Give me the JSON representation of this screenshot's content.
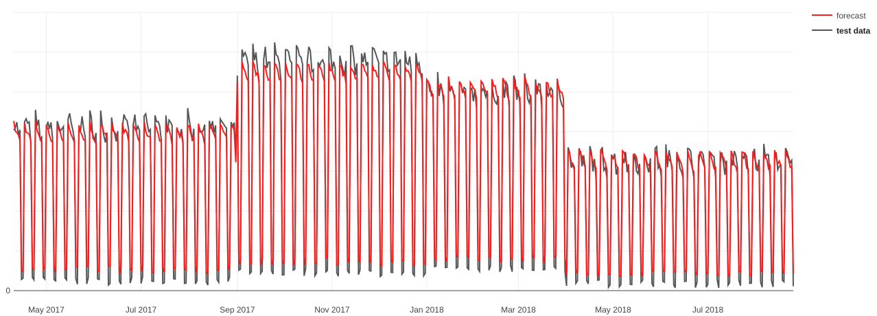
{
  "chart_data": {
    "type": "line",
    "title": "",
    "xlabel": "",
    "ylabel": "",
    "x_range": [
      "2017-04-10",
      "2018-08-25"
    ],
    "y_tick_labels": [
      "0"
    ],
    "x_tick_labels": [
      "May 2017",
      "Jul 2017",
      "Sep 2017",
      "Nov 2017",
      "Jan 2018",
      "Mar 2018",
      "May 2018",
      "Jul 2018"
    ],
    "x_tick_dates": [
      "2017-05-01",
      "2017-07-01",
      "2017-09-01",
      "2017-11-01",
      "2018-01-01",
      "2018-03-01",
      "2018-05-01",
      "2018-07-01"
    ],
    "grid": true,
    "legend_placement": "top-right",
    "series": [
      {
        "name": "forecast",
        "color": "#ff1a1a"
      },
      {
        "name": "test data",
        "color": "#555555"
      }
    ],
    "weekly_peak_segments": [
      {
        "from": "2017-04-10",
        "to": "2017-08-31",
        "test_peak": 0.62,
        "forecast_peak": 0.6,
        "test_trough": 0.02
      },
      {
        "from": "2017-09-01",
        "to": "2018-01-01",
        "test_peak": 0.86,
        "forecast_peak": 0.82,
        "test_trough": 0.05
      },
      {
        "from": "2018-01-01",
        "to": "2018-04-01",
        "test_peak": 0.75,
        "forecast_peak": 0.76,
        "test_trough": 0.06
      },
      {
        "from": "2018-04-01",
        "to": "2018-08-25",
        "test_peak": 0.5,
        "forecast_peak": 0.5,
        "test_trough": 0.01
      }
    ]
  }
}
